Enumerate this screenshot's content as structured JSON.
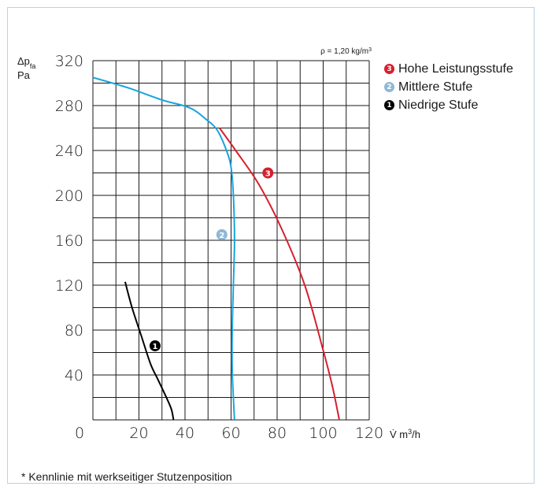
{
  "chart_data": {
    "type": "line",
    "y_label_line1": "Δp",
    "y_label_sub": "fa",
    "y_unit": "Pa",
    "x_label_prefix": "V̇ m",
    "x_label_sup": "3",
    "x_label_suffix": "/h",
    "density_prefix": "ρ = 1,20 kg/m",
    "density_sup": "3",
    "xlim": [
      0,
      120
    ],
    "ylim": [
      0,
      320
    ],
    "x_ticks": [
      "0",
      "20",
      "40",
      "60",
      "80",
      "100",
      "120"
    ],
    "y_ticks": [
      "0",
      "40",
      "80",
      "120",
      "160",
      "200",
      "240",
      "280",
      "320"
    ],
    "series": [
      {
        "name": "Hohe Leistungsstufe",
        "marker": "3",
        "color": "#d6202e",
        "points": [
          [
            55,
            260
          ],
          [
            62,
            240
          ],
          [
            72,
            210
          ],
          [
            82,
            170
          ],
          [
            92,
            120
          ],
          [
            100,
            62
          ],
          [
            104,
            30
          ],
          [
            107,
            0
          ]
        ]
      },
      {
        "name": "Mittlere Stufe",
        "marker": "2",
        "color": "#8fb8d6",
        "line_color": "#1aa3de",
        "points": [
          [
            0,
            305
          ],
          [
            15,
            296
          ],
          [
            30,
            285
          ],
          [
            42,
            278
          ],
          [
            49,
            268
          ],
          [
            54,
            258
          ],
          [
            58,
            240
          ],
          [
            60,
            225
          ],
          [
            61,
            200
          ],
          [
            61.5,
            160
          ],
          [
            61,
            120
          ],
          [
            60.5,
            80
          ],
          [
            60.5,
            45
          ],
          [
            61,
            20
          ],
          [
            61.5,
            0
          ]
        ]
      },
      {
        "name": "Niedrige Stufe",
        "marker": "1",
        "color": "#000000",
        "points": [
          [
            14,
            123
          ],
          [
            17,
            100
          ],
          [
            21,
            75
          ],
          [
            25,
            50
          ],
          [
            28,
            37
          ],
          [
            31,
            24
          ],
          [
            34,
            10
          ],
          [
            35,
            0
          ]
        ]
      }
    ],
    "curve_markers": [
      {
        "label": "3",
        "x": 76,
        "y": 220,
        "color": "#d6202e"
      },
      {
        "label": "2",
        "x": 56,
        "y": 165,
        "color": "#8fb8d6"
      },
      {
        "label": "1",
        "x": 27,
        "y": 66,
        "color": "#000000"
      }
    ]
  },
  "legend": [
    {
      "marker": "3",
      "label": "Hohe Leistungsstufe",
      "color": "#d6202e"
    },
    {
      "marker": "2",
      "label": "Mittlere Stufe",
      "color": "#8fb8d6"
    },
    {
      "marker": "1",
      "label": "Niedrige Stufe",
      "color": "#000000"
    }
  ],
  "footnote": "* Kennlinie mit werkseitiger Stutzenposition"
}
